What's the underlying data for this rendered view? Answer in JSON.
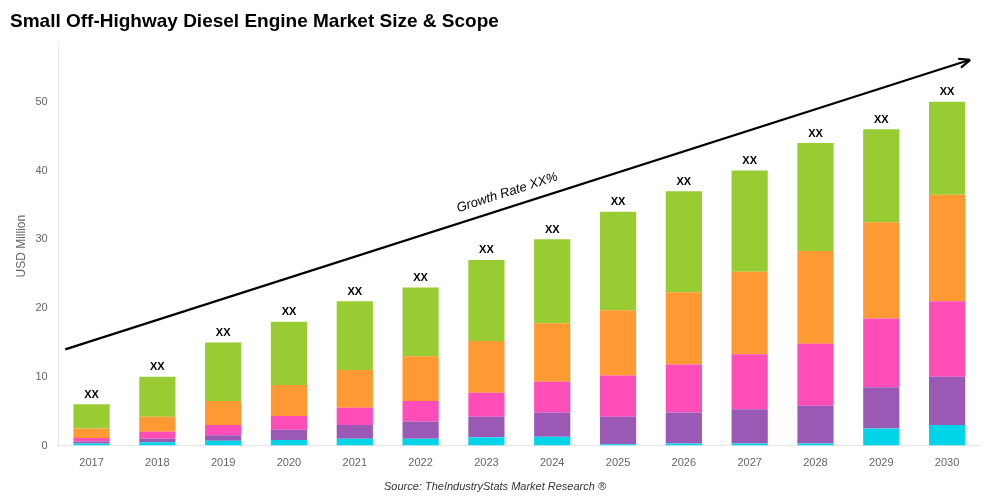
{
  "chart_data": {
    "type": "bar",
    "title": "Small Off-Highway Diesel Engine Market Size & Scope",
    "ylabel": "USD Million",
    "source": "Source: TheIndustryStats Market Research ®",
    "categories": [
      "2017",
      "2018",
      "2019",
      "2020",
      "2021",
      "2022",
      "2023",
      "2024",
      "2025",
      "2026",
      "2027",
      "2028",
      "2029",
      "2030"
    ],
    "stacked": true,
    "grid": false,
    "series": [
      {
        "color": "#00d4e8",
        "values": [
          0.3,
          0.5,
          0.7,
          0.8,
          1.0,
          1.0,
          1.2,
          1.3,
          0.2,
          0.3,
          0.3,
          0.3,
          2.5,
          3.0
        ]
      },
      {
        "color": "#9b59b6",
        "values": [
          0.3,
          0.5,
          0.8,
          1.5,
          2.0,
          2.5,
          3.0,
          3.5,
          4.0,
          4.5,
          5.0,
          5.5,
          6.0,
          7.0
        ]
      },
      {
        "color": "#ff4db8",
        "values": [
          0.5,
          1.0,
          1.5,
          2.0,
          2.5,
          3.0,
          3.5,
          4.5,
          6.0,
          7.0,
          8.0,
          9.0,
          10.0,
          11.0
        ]
      },
      {
        "color": "#ff9933",
        "values": [
          1.4,
          2.2,
          3.5,
          4.5,
          5.5,
          6.5,
          7.5,
          8.5,
          9.5,
          10.5,
          12.0,
          13.5,
          14.0,
          15.5
        ]
      },
      {
        "color": "#99cc33",
        "values": [
          3.5,
          5.8,
          8.5,
          9.2,
          10.0,
          10.0,
          11.8,
          12.2,
          14.3,
          14.7,
          14.7,
          15.7,
          13.5,
          13.5
        ]
      }
    ],
    "annotations": [
      {
        "text": "XX",
        "category": "2017"
      },
      {
        "text": "XX",
        "category": "2018"
      },
      {
        "text": "XX",
        "category": "2019"
      },
      {
        "text": "XX",
        "category": "2020"
      },
      {
        "text": "XX",
        "category": "2021"
      },
      {
        "text": "XX",
        "category": "2022"
      },
      {
        "text": "XX",
        "category": "2023"
      },
      {
        "text": "XX",
        "category": "2024"
      },
      {
        "text": "XX",
        "category": "2025"
      },
      {
        "text": "XX",
        "category": "2026"
      },
      {
        "text": "XX",
        "category": "2027"
      },
      {
        "text": "XX",
        "category": "2028"
      },
      {
        "text": "XX",
        "category": "2029"
      },
      {
        "text": "XX",
        "category": "2030"
      }
    ],
    "arrow_label": "Growth Rate XX%",
    "ylim": [
      0,
      58
    ],
    "yticks": [
      0,
      10,
      20,
      30,
      40,
      50
    ]
  }
}
